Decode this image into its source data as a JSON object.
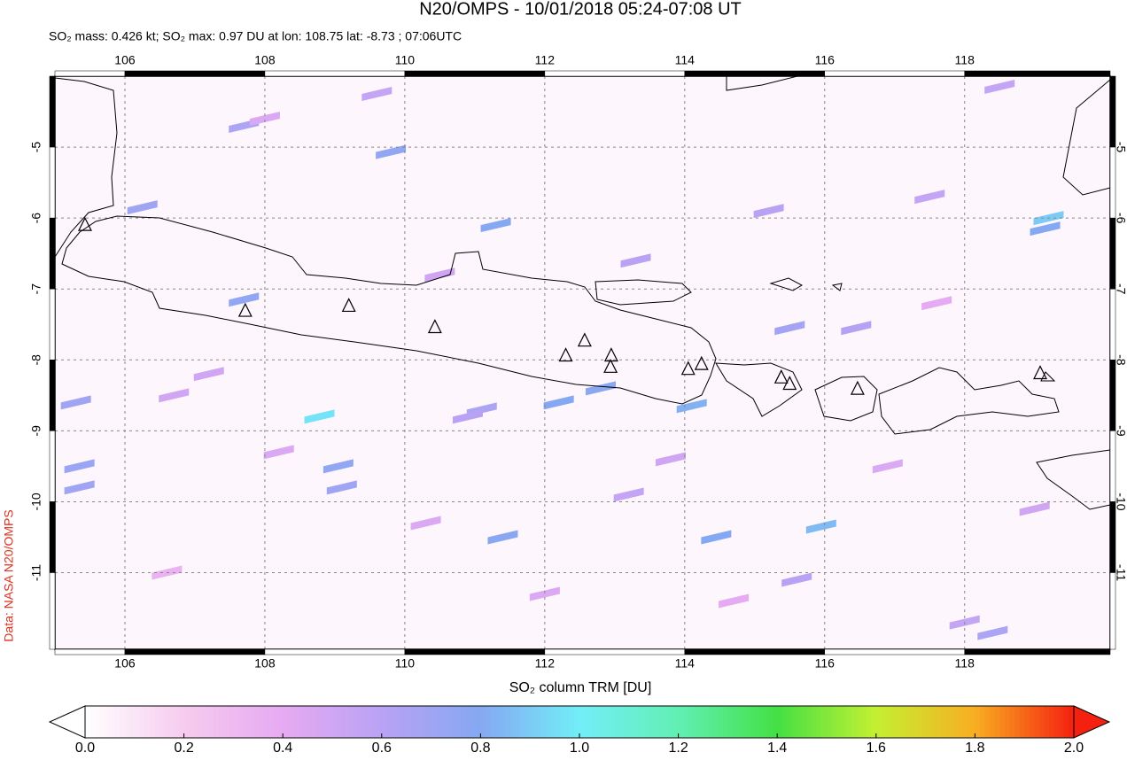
{
  "header": {
    "title": "N20/OMPS - 10/01/2018 05:24-07:08 UT",
    "subtitle": "SO₂ mass: 0.426 kt; SO₂ max: 0.97 DU at lon: 108.75 lat: -8.73 ; 07:06UTC"
  },
  "credit": "Data: NASA N20/OMPS",
  "chart_data": {
    "type": "map",
    "xlim": [
      105.0,
      120.08
    ],
    "ylim": [
      -12.08,
      -4.0
    ],
    "xticks": [
      106,
      108,
      110,
      112,
      114,
      116,
      118
    ],
    "yticks": [
      -5,
      -6,
      -7,
      -8,
      -9,
      -10,
      -11
    ],
    "grid": true,
    "pixels": {
      "x": [
        108.78,
        109.8,
        111.3,
        107.7,
        106.25,
        119.2,
        119.15,
        105.3,
        105.35,
        105.35,
        109.05,
        109.1,
        107.7,
        112.2,
        112.8,
        111.4,
        115.95,
        114.45,
        114.1,
        115.5,
        116.45,
        118.4,
        111.1,
        110.9,
        109.6,
        108.0,
        113.3,
        115.2,
        117.5,
        118.5,
        107.2,
        106.7,
        108.2,
        110.5,
        113.8,
        116.9,
        119.0,
        118.0,
        112.0,
        114.7,
        106.6,
        117.6,
        110.3,
        113.2,
        115.6
      ],
      "y": [
        -8.8,
        -5.07,
        -6.1,
        -4.7,
        -5.85,
        -6.0,
        -6.15,
        -8.6,
        -9.5,
        -9.8,
        -9.5,
        -9.8,
        -7.15,
        -8.6,
        -8.4,
        -10.5,
        -10.35,
        -10.5,
        -8.65,
        -7.55,
        -7.55,
        -11.85,
        -8.7,
        -8.8,
        -4.25,
        -4.6,
        -6.6,
        -5.9,
        -5.7,
        -4.15,
        -8.2,
        -8.5,
        -9.3,
        -6.8,
        -9.4,
        -9.5,
        -10.1,
        -11.7,
        -11.3,
        -11.4,
        -11.0,
        -7.2,
        -10.3,
        -9.9,
        -11.1
      ],
      "values": [
        0.97,
        0.75,
        0.8,
        0.65,
        0.7,
        0.9,
        0.8,
        0.7,
        0.72,
        0.7,
        0.75,
        0.7,
        0.75,
        0.8,
        0.78,
        0.78,
        0.85,
        0.8,
        0.82,
        0.68,
        0.62,
        0.65,
        0.65,
        0.6,
        0.55,
        0.45,
        0.6,
        0.6,
        0.55,
        0.55,
        0.5,
        0.5,
        0.45,
        0.5,
        0.5,
        0.45,
        0.5,
        0.55,
        0.45,
        0.4,
        0.35,
        0.4,
        0.45,
        0.55,
        0.6
      ]
    },
    "volcanoes": {
      "x": [
        105.43,
        107.72,
        109.2,
        110.43,
        112.3,
        112.57,
        112.95,
        112.94,
        114.05,
        114.24,
        115.38,
        115.5,
        116.47,
        119.08
      ],
      "y": [
        -6.1,
        -7.31,
        -7.24,
        -7.54,
        -7.94,
        -7.73,
        -7.94,
        -8.1,
        -8.13,
        -8.06,
        -8.25,
        -8.34,
        -8.41,
        -8.19
      ]
    },
    "colorbar": {
      "label": "SO₂ column TRM [DU]",
      "lim": [
        0,
        2
      ],
      "ticks": [
        {
          "value": 0,
          "label": "0.0"
        },
        0.2,
        0.4,
        0.6,
        0.8,
        {
          "value": 1,
          "label": "1.0"
        },
        1.2,
        1.4,
        1.6,
        1.8,
        {
          "value": 2,
          "label": "2.0"
        }
      ],
      "colors": [
        "#ffffff",
        "#f6cbef",
        "#e6aaf2",
        "#b9a2f4",
        "#85a8f2",
        "#72eef8",
        "#62efb4",
        "#44e044",
        "#c4f032",
        "#f8ae22",
        "#f42010"
      ]
    }
  }
}
